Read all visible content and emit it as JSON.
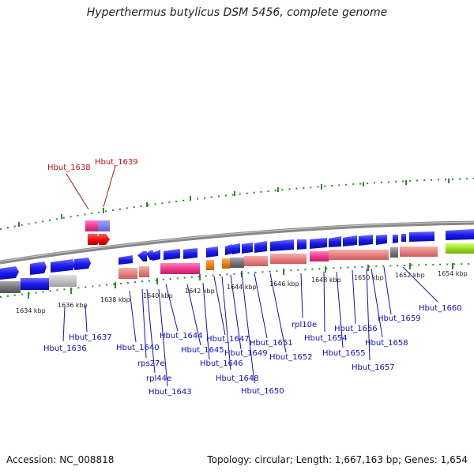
{
  "title": "Hyperthermus butylicus DSM 5456, complete genome",
  "footer": {
    "accession": "Accession: NC_008818",
    "topology": "Topology: circular; Length: 1,667,163 bp; Genes: 1,654"
  },
  "scale_labels": [
    "1634 kbp",
    "1636 kbp",
    "1638 kbp",
    "1640 kbp",
    "1642 kbp",
    "1644 kbp",
    "1646 kbp",
    "1648 kbp",
    "1650 kbp",
    "1652 kbp",
    "1654 kbp"
  ],
  "gene_labels": [
    "Hbut_1636",
    "Hbut_1637",
    "Hbut_1638",
    "Hbut_1639",
    "Hbut_1640",
    "rps27e",
    "rpl44e",
    "Hbut_1643",
    "Hbut_1644",
    "Hbut_1645",
    "Hbut_1646",
    "Hbut_1647",
    "Hbut_1648",
    "Hbut_1649",
    "Hbut_1650",
    "Hbut_1651",
    "Hbut_1652",
    "rpl10e",
    "Hbut_1654",
    "Hbut_1655",
    "Hbut_1656",
    "Hbut_1657",
    "Hbut_1658",
    "Hbut_1659",
    "Hbut_1660"
  ],
  "colors": {
    "gene": "#1a1aee",
    "rna": "#ee3a8c",
    "pink_block": "#e88080",
    "grey_block": "#777777",
    "orange_block": "#f08010",
    "green_block": "#a0e020",
    "tick": "#2a8a2a",
    "label_blue": "#1010c8",
    "label_red": "#c81010"
  }
}
